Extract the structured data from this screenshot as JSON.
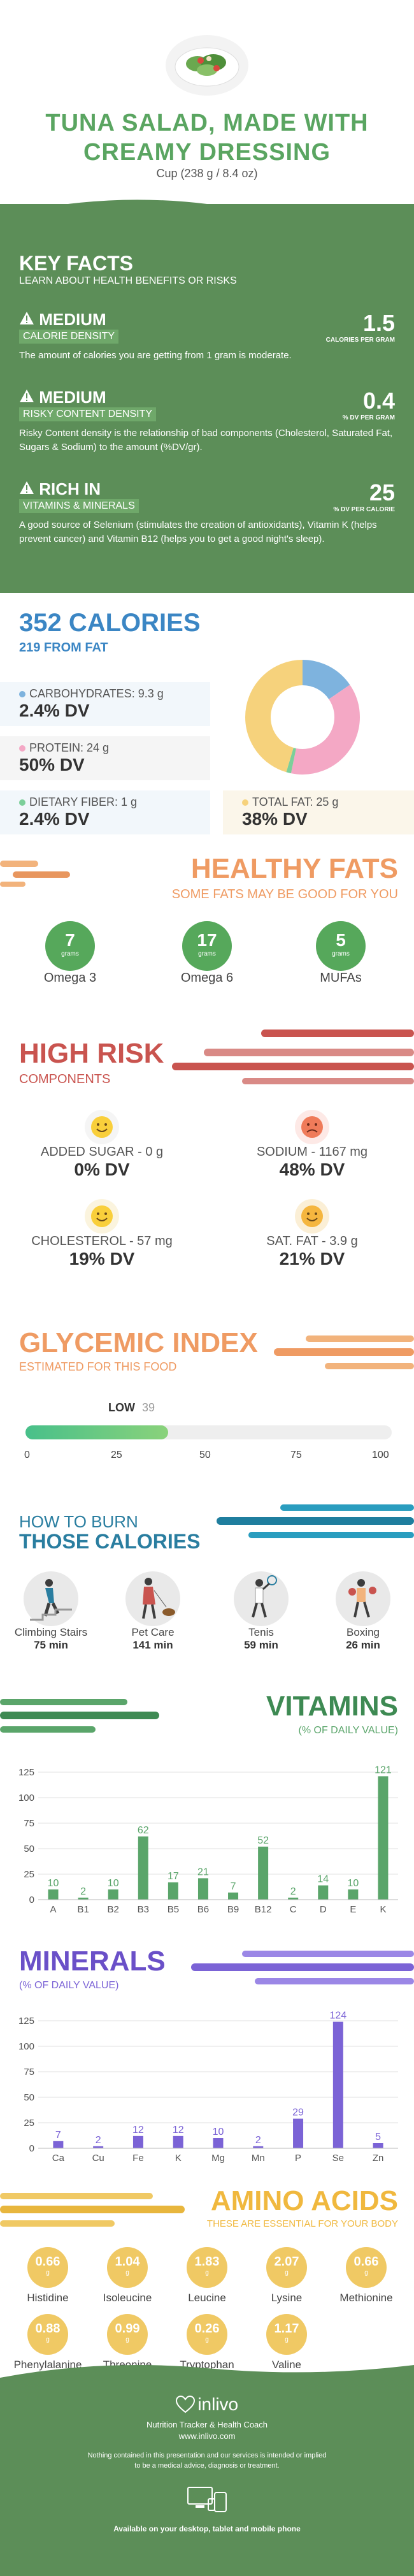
{
  "header": {
    "title_line1": "TUNA SALAD, MADE WITH",
    "title_line2": "CREAMY DRESSING",
    "serving": "Cup (238 g / 8.4 oz)"
  },
  "key_facts": {
    "title": "KEY FACTS",
    "subtitle": "LEARN ABOUT HEALTH BENEFITS OR RISKS",
    "items": [
      {
        "level": "MEDIUM",
        "tag": "CALORIE DENSITY",
        "value": "1.5",
        "unit": "CALORIES PER GRAM",
        "desc": "The amount of calories you are getting from 1 gram is moderate."
      },
      {
        "level": "MEDIUM",
        "tag": "RISKY CONTENT DENSITY",
        "value": "0.4",
        "unit": "% DV PER GRAM",
        "desc": "Risky Content density is the relationship of bad components (Cholesterol, Saturated Fat, Sugars & Sodium) to the amount (%DV/gr)."
      },
      {
        "level": "RICH IN",
        "tag": "VITAMINS & MINERALS",
        "value": "25",
        "unit": "% DV PER CALORIE",
        "desc": "A good source of Selenium (stimulates the creation of antioxidants), Vitamin K (helps prevent cancer) and Vitamin B12 (helps you to get a good night's sleep)."
      }
    ]
  },
  "calories": {
    "title": "352 CALORIES",
    "from_fat": "219 FROM FAT",
    "macros": [
      {
        "label": "CARBOHYDRATES: 9.3 g",
        "dv": "2.4% DV",
        "color": "#7eb3de"
      },
      {
        "label": "PROTEIN: 24 g",
        "dv": "50% DV",
        "color": "#f4a8c5"
      },
      {
        "label": "DIETARY FIBER: 1 g",
        "dv": "2.4% DV",
        "color": "#7ccf9a"
      },
      {
        "label": "TOTAL FAT: 25 g",
        "dv": "38% DV",
        "color": "#f6d27c"
      }
    ]
  },
  "healthy_fats": {
    "title": "HEALTHY FATS",
    "subtitle": "SOME FATS MAY BE GOOD FOR YOU",
    "items": [
      {
        "value": "7",
        "unit": "grams",
        "name": "Omega 3"
      },
      {
        "value": "17",
        "unit": "grams",
        "name": "Omega 6"
      },
      {
        "value": "5",
        "unit": "grams",
        "name": "MUFAs"
      }
    ]
  },
  "high_risk": {
    "title": "HIGH RISK",
    "subtitle": "COMPONENTS",
    "items": [
      {
        "label": "ADDED SUGAR - 0 g",
        "dv": "0% DV",
        "mood": "happy"
      },
      {
        "label": "SODIUM - 1167 mg",
        "dv": "48% DV",
        "mood": "sad"
      },
      {
        "label": "CHOLESTEROL - 57 mg",
        "dv": "19% DV",
        "mood": "happy"
      },
      {
        "label": "SAT. FAT - 3.9 g",
        "dv": "21% DV",
        "mood": "happy"
      }
    ]
  },
  "glycemic": {
    "title": "GLYCEMIC INDEX",
    "subtitle": "ESTIMATED FOR THIS FOOD",
    "level": "LOW",
    "value": 39,
    "value_text": "39",
    "ticks": [
      "0",
      "25",
      "50",
      "75",
      "100"
    ]
  },
  "burn": {
    "title_line1": "HOW TO BURN",
    "title_line2": "THOSE CALORIES",
    "items": [
      {
        "name": "Climbing Stairs",
        "minutes": "75 min"
      },
      {
        "name": "Pet Care",
        "minutes": "141 min"
      },
      {
        "name": "Tenis",
        "minutes": "59 min"
      },
      {
        "name": "Boxing",
        "minutes": "26 min"
      }
    ]
  },
  "vitamins": {
    "title": "VITAMINS",
    "subtitle": "(% OF DAILY VALUE)"
  },
  "minerals": {
    "title": "MINERALS",
    "subtitle": "(% OF DAILY VALUE)"
  },
  "chart_data": [
    {
      "type": "bar",
      "title": "VITAMINS",
      "subtitle": "(% OF DAILY VALUE)",
      "categories": [
        "A",
        "B1",
        "B2",
        "B3",
        "B5",
        "B6",
        "B9",
        "B12",
        "C",
        "D",
        "E",
        "K"
      ],
      "values": [
        10,
        2,
        10,
        62,
        17,
        21,
        7,
        52,
        2,
        14,
        10,
        121
      ],
      "ylim": [
        0,
        125
      ],
      "yticks": [
        "0",
        "25",
        "50",
        "75",
        "100",
        "125"
      ],
      "color": "#5aa56a",
      "grid": true
    },
    {
      "type": "bar",
      "title": "MINERALS",
      "subtitle": "(% OF DAILY VALUE)",
      "categories": [
        "Ca",
        "Cu",
        "Fe",
        "K",
        "Mg",
        "Mn",
        "P",
        "Se",
        "Zn"
      ],
      "values": [
        7,
        2,
        12,
        12,
        10,
        2,
        29,
        124,
        5
      ],
      "ylim": [
        0,
        125
      ],
      "yticks": [
        "0",
        "25",
        "50",
        "75",
        "100",
        "125"
      ],
      "color": "#7b63d6",
      "grid": true
    }
  ],
  "amino": {
    "title": "AMINO ACIDS",
    "subtitle": "THESE ARE ESSENTIAL FOR YOUR BODY",
    "items": [
      {
        "value": "0.66",
        "unit": "g",
        "name": "Histidine"
      },
      {
        "value": "1.04",
        "unit": "g",
        "name": "Isoleucine"
      },
      {
        "value": "1.83",
        "unit": "g",
        "name": "Leucine"
      },
      {
        "value": "2.07",
        "unit": "g",
        "name": "Lysine"
      },
      {
        "value": "0.66",
        "unit": "g",
        "name": "Methionine"
      },
      {
        "value": "0.88",
        "unit": "g",
        "name": "Phenylalanine"
      },
      {
        "value": "0.99",
        "unit": "g",
        "name": "Threonine"
      },
      {
        "value": "0.26",
        "unit": "g",
        "name": "Tryptophan"
      },
      {
        "value": "1.17",
        "unit": "g",
        "name": "Valine"
      }
    ]
  },
  "footer": {
    "brand": "inlivo",
    "tagline": "Nutrition Tracker & Health Coach",
    "url": "www.inlivo.com",
    "disclaimer_1": "Nothing contained in this presentation and our services is intended or implied",
    "disclaimer_2": "to be a medical advice, diagnosis or treatment.",
    "available": "Available on your desktop, tablet and mobile phone"
  }
}
